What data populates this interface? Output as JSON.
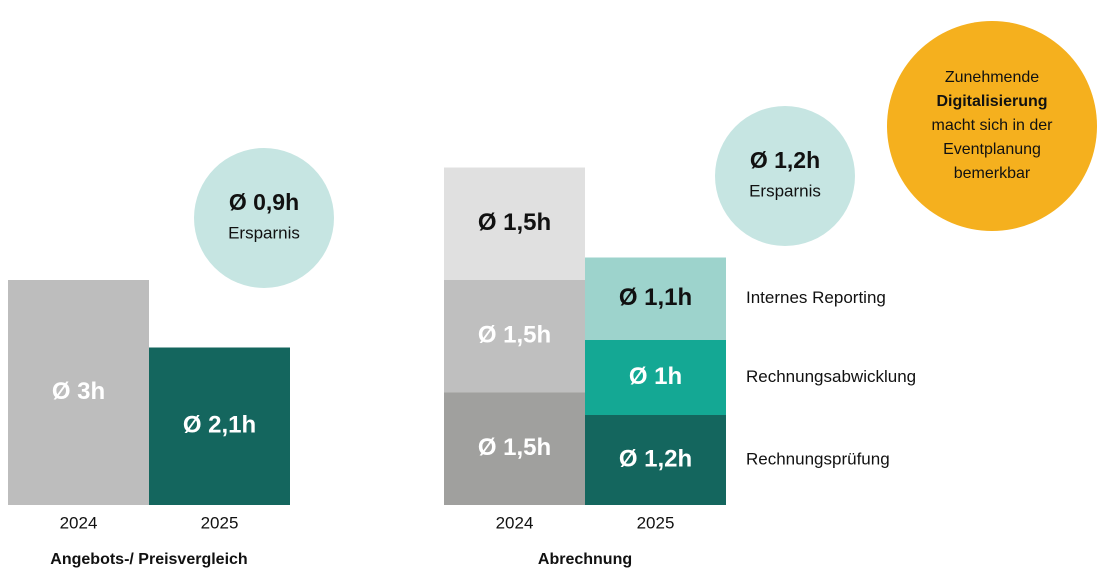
{
  "chart_data": [
    {
      "type": "bar",
      "title": "Angebots-/ Preisvergleich",
      "categories": [
        "2024",
        "2025"
      ],
      "values": [
        3,
        2.1
      ],
      "value_labels": [
        "Ø 3h",
        "Ø 2,1h"
      ],
      "colors": [
        "#bdbdbd",
        "#14665e"
      ],
      "label_colors": [
        "#ffffff",
        "#ffffff"
      ],
      "annotation": {
        "label": "Ø 0,9h",
        "text": "Ersparnis",
        "color": "#c6e5e2"
      }
    },
    {
      "type": "stacked_bar",
      "title": "Abrechnung",
      "categories": [
        "2024",
        "2025"
      ],
      "series": [
        {
          "name": "Rechnungsprüfung",
          "values": [
            1.5,
            1.2
          ],
          "value_labels": [
            "Ø 1,5h",
            "Ø 1,2h"
          ],
          "colors": [
            "#a0a09e",
            "#14665e"
          ],
          "label_colors": [
            "#ffffff",
            "#ffffff"
          ]
        },
        {
          "name": "Rechnungsabwicklung",
          "values": [
            1.5,
            1
          ],
          "value_labels": [
            "Ø 1,5h",
            "Ø 1h"
          ],
          "colors": [
            "#bfbfbf",
            "#14a894"
          ],
          "label_colors": [
            "#ffffff",
            "#ffffff"
          ]
        },
        {
          "name": "Internes Reporting",
          "values": [
            1.5,
            1.1
          ],
          "value_labels": [
            "Ø 1,5h",
            "Ø 1,1h"
          ],
          "colors": [
            "#e0e0e0",
            "#9dd3cc"
          ],
          "label_colors": [
            "#111111",
            "#111111"
          ]
        }
      ],
      "annotation": {
        "label": "Ø 1,2h",
        "text": "Ersparnis",
        "color": "#c6e5e2"
      },
      "callout": {
        "color": "#f5b01e",
        "lines": [
          "Zunehmende",
          "Digitalisierung",
          "macht sich in der",
          "Eventplanung",
          "bemerkbar"
        ],
        "bold_line": 1
      }
    }
  ]
}
